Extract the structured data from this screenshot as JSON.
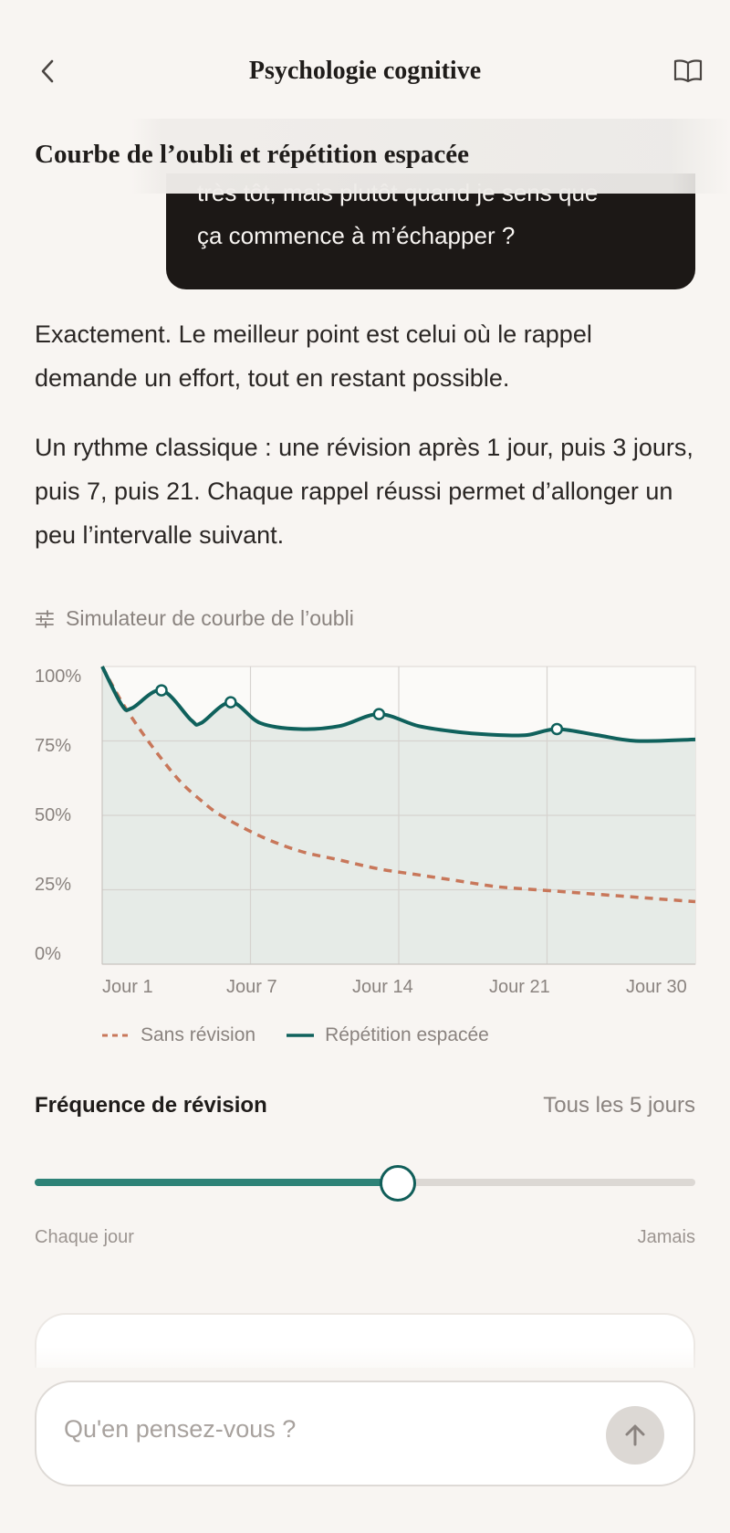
{
  "header": {
    "title": "Psychologie cognitive",
    "back_icon": "chevron-left-icon",
    "book_icon": "book-open-icon"
  },
  "section": {
    "title": "Courbe de l’oubli et répétition espacée"
  },
  "user_message": {
    "line1": "très tôt, mais plutôt quand je sens que",
    "line2": "ça commence à m’échapper ?"
  },
  "assistant": {
    "paragraph1": "Exactement. Le meilleur point est celui où le rappel demande un effort, tout en restant possible.",
    "paragraph2": "Un rythme classique : une révision après 1 jour, puis 3 jours, puis 7, puis 21. Chaque rappel réussi permet d’allonger un peu l’intervalle suivant."
  },
  "simulator": {
    "label": "Simulateur de courbe de l’oubli",
    "icon": "sliders-icon",
    "frequency_label": "Fréquence de révision",
    "frequency_value": "Tous les 5 jours",
    "slider_value": 0.55,
    "slider_min_label": "Chaque jour",
    "slider_max_label": "Jamais"
  },
  "chart_data": {
    "type": "line",
    "ylim": [
      0,
      100
    ],
    "xlim": [
      0,
      30
    ],
    "yticks": [
      "100%",
      "75%",
      "50%",
      "25%",
      "0%"
    ],
    "xticks": [
      "Jour 1",
      "Jour 7",
      "Jour 14",
      "Jour 21",
      "Jour 30"
    ],
    "grid": true,
    "legend_position": "bottom",
    "colors": {
      "no_review": "#c8775a",
      "spaced": "#0f615c",
      "area": "#e6ebe7"
    },
    "series": [
      {
        "name": "Sans révision",
        "style": "dashed",
        "x": [
          0,
          1,
          2,
          3,
          4,
          5,
          6,
          8,
          10,
          12,
          14,
          16,
          18,
          20,
          22,
          24,
          26,
          28,
          30
        ],
        "y": [
          100,
          88,
          78,
          69,
          61,
          55,
          50,
          43,
          38,
          35,
          32,
          30,
          28,
          26,
          25,
          24,
          23,
          22,
          21
        ]
      },
      {
        "name": "Répétition espacée",
        "style": "solid",
        "x": [
          0,
          1,
          1.5,
          3,
          4.5,
          5,
          6.5,
          8,
          10,
          12,
          14,
          16,
          18,
          20,
          21.5,
          23,
          25,
          27,
          30
        ],
        "y": [
          100,
          87,
          86,
          92,
          82,
          81,
          88,
          81,
          79,
          80,
          84,
          80,
          78,
          77,
          77,
          79,
          77,
          75,
          75.5
        ]
      }
    ],
    "review_points": [
      {
        "x": 3,
        "y": 92
      },
      {
        "x": 6.5,
        "y": 88
      },
      {
        "x": 14,
        "y": 84
      },
      {
        "x": 23,
        "y": 79
      }
    ]
  },
  "composer": {
    "placeholder": "Qu'en pensez-vous ?",
    "send_icon": "arrow-up-icon"
  }
}
